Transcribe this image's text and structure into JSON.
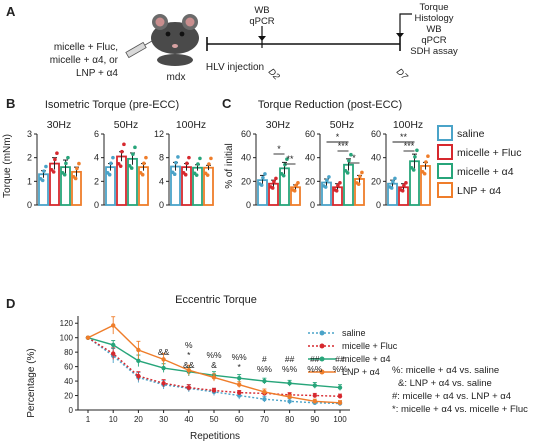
{
  "panel_letters": {
    "a": "A",
    "b": "B",
    "c": "C",
    "d": "D"
  },
  "panel_a": {
    "treatment_lines": [
      "micelle + Fluc,",
      "micelle + α4, or",
      "LNP + α4"
    ],
    "mouse_label": "mdx",
    "hlv_label": "HLV injection",
    "d2_label": "D2",
    "d7_label": "D7",
    "d2_assays": [
      "WB",
      "qPCR"
    ],
    "d7_assays": [
      "Torque",
      "Histology",
      "WB",
      "qPCR",
      "SDH assay"
    ]
  },
  "colors": {
    "saline": "#4aa3c8",
    "micelle_fluc": "#d6282e",
    "micelle_a4": "#27a57a",
    "lnp_a4": "#ef7d2a"
  },
  "legend_bc": [
    "saline",
    "micelle + Fluc",
    "micelle + α4",
    "LNP + α4"
  ],
  "chart_data": [
    {
      "type": "bar",
      "title": "Isometric Torque (pre-ECC)",
      "ylabel": "Torque (mNm)",
      "yticks": [
        "0",
        "4",
        "8",
        "12"
      ],
      "ylim": [
        0,
        12
      ],
      "subplots": [
        {
          "label": "30Hz",
          "values": [
            1.3,
            1.75,
            1.6,
            1.4
          ],
          "errors": [
            0.15,
            0.25,
            0.3,
            0.2
          ]
        },
        {
          "label": "50Hz",
          "values": [
            3.2,
            4.1,
            3.9,
            3.2
          ],
          "errors": [
            0.3,
            0.4,
            0.5,
            0.3
          ]
        },
        {
          "label": "100Hz",
          "values": [
            6.5,
            6.4,
            6.3,
            6.3
          ],
          "errors": [
            0.7,
            0.6,
            0.5,
            0.4
          ]
        }
      ],
      "subplot_ylims": [
        [
          0,
          3
        ],
        [
          0,
          6
        ],
        [
          0,
          12
        ]
      ],
      "subplot_yticks": [
        [
          "0",
          "1",
          "2",
          "3"
        ],
        [
          "0",
          "2",
          "4",
          "6"
        ],
        [
          "0",
          "4",
          "8",
          "12"
        ]
      ],
      "series": [
        "saline",
        "micelle + Fluc",
        "micelle + α4",
        "LNP + α4"
      ]
    },
    {
      "type": "bar",
      "title": "Torque Reduction (post-ECC)",
      "ylabel": "% of initial",
      "ylim": [
        0,
        60
      ],
      "yticks": [
        "0",
        "20",
        "40",
        "60"
      ],
      "subplots": [
        {
          "label": "30Hz",
          "values": [
            21,
            18,
            31,
            15
          ],
          "errors": [
            4,
            3,
            5,
            2
          ],
          "sig": [
            "*",
            "**"
          ]
        },
        {
          "label": "50Hz",
          "values": [
            19,
            15,
            34,
            22
          ],
          "errors": [
            3,
            3,
            5,
            3
          ],
          "sig": [
            "*",
            "***",
            "*"
          ]
        },
        {
          "label": "100Hz",
          "values": [
            18,
            15,
            37,
            33
          ],
          "errors": [
            3,
            3,
            6,
            3
          ],
          "sig": [
            "**",
            "***"
          ]
        }
      ],
      "series": [
        "saline",
        "micelle + Fluc",
        "micelle + α4",
        "LNP + α4"
      ]
    },
    {
      "type": "line",
      "title": "Eccentric Torque",
      "xlabel": "Repetitions",
      "ylabel": "Percentage (%)",
      "x": [
        1,
        10,
        20,
        30,
        40,
        50,
        60,
        70,
        80,
        90,
        100
      ],
      "xticks": [
        "1",
        "10",
        "20",
        "30",
        "40",
        "50",
        "60",
        "70",
        "80",
        "90",
        "100"
      ],
      "yticks": [
        "0",
        "20",
        "40",
        "60",
        "80",
        "100",
        "120"
      ],
      "ylim": [
        0,
        130
      ],
      "series": [
        {
          "name": "saline",
          "values": [
            100,
            75,
            45,
            35,
            30,
            25,
            20,
            15,
            12,
            10,
            9
          ],
          "errors": [
            0,
            10,
            7,
            6,
            5,
            5,
            5,
            4,
            4,
            3,
            3
          ]
        },
        {
          "name": "micelle + Fluc",
          "values": [
            100,
            78,
            47,
            37,
            31,
            27,
            24,
            23,
            21,
            20,
            19
          ],
          "errors": [
            0,
            8,
            6,
            5,
            4,
            3,
            3,
            3,
            3,
            3,
            3
          ]
        },
        {
          "name": "micelle + α4",
          "values": [
            100,
            90,
            68,
            58,
            53,
            48,
            44,
            40,
            37,
            34,
            31
          ],
          "errors": [
            0,
            6,
            8,
            6,
            6,
            5,
            5,
            4,
            4,
            4,
            4
          ]
        },
        {
          "name": "LNP + α4",
          "values": [
            100,
            117,
            83,
            70,
            55,
            45,
            35,
            25,
            18,
            12,
            10
          ],
          "errors": [
            0,
            12,
            12,
            8,
            7,
            5,
            4,
            4,
            3,
            3,
            3
          ]
        }
      ],
      "annotations": [
        {
          "x": 30,
          "lines": [
            "&&"
          ]
        },
        {
          "x": 40,
          "lines": [
            "%",
            "*",
            "&&"
          ]
        },
        {
          "x": 50,
          "lines": [
            "%%",
            "&"
          ]
        },
        {
          "x": 60,
          "lines": [
            "%%",
            "*"
          ]
        },
        {
          "x": 70,
          "lines": [
            "#",
            "%%"
          ]
        },
        {
          "x": 80,
          "lines": [
            "##",
            "%%"
          ]
        },
        {
          "x": 90,
          "lines": [
            "##",
            "%%"
          ]
        },
        {
          "x": 100,
          "lines": [
            "##",
            "%%"
          ]
        }
      ],
      "key": [
        "%: micelle + α4 vs. saline",
        "&: LNP + α4 vs. saline",
        "#: micelle + α4 vs. LNP + α4",
        "*: micelle + α4 vs. micelle + Fluc"
      ]
    }
  ]
}
